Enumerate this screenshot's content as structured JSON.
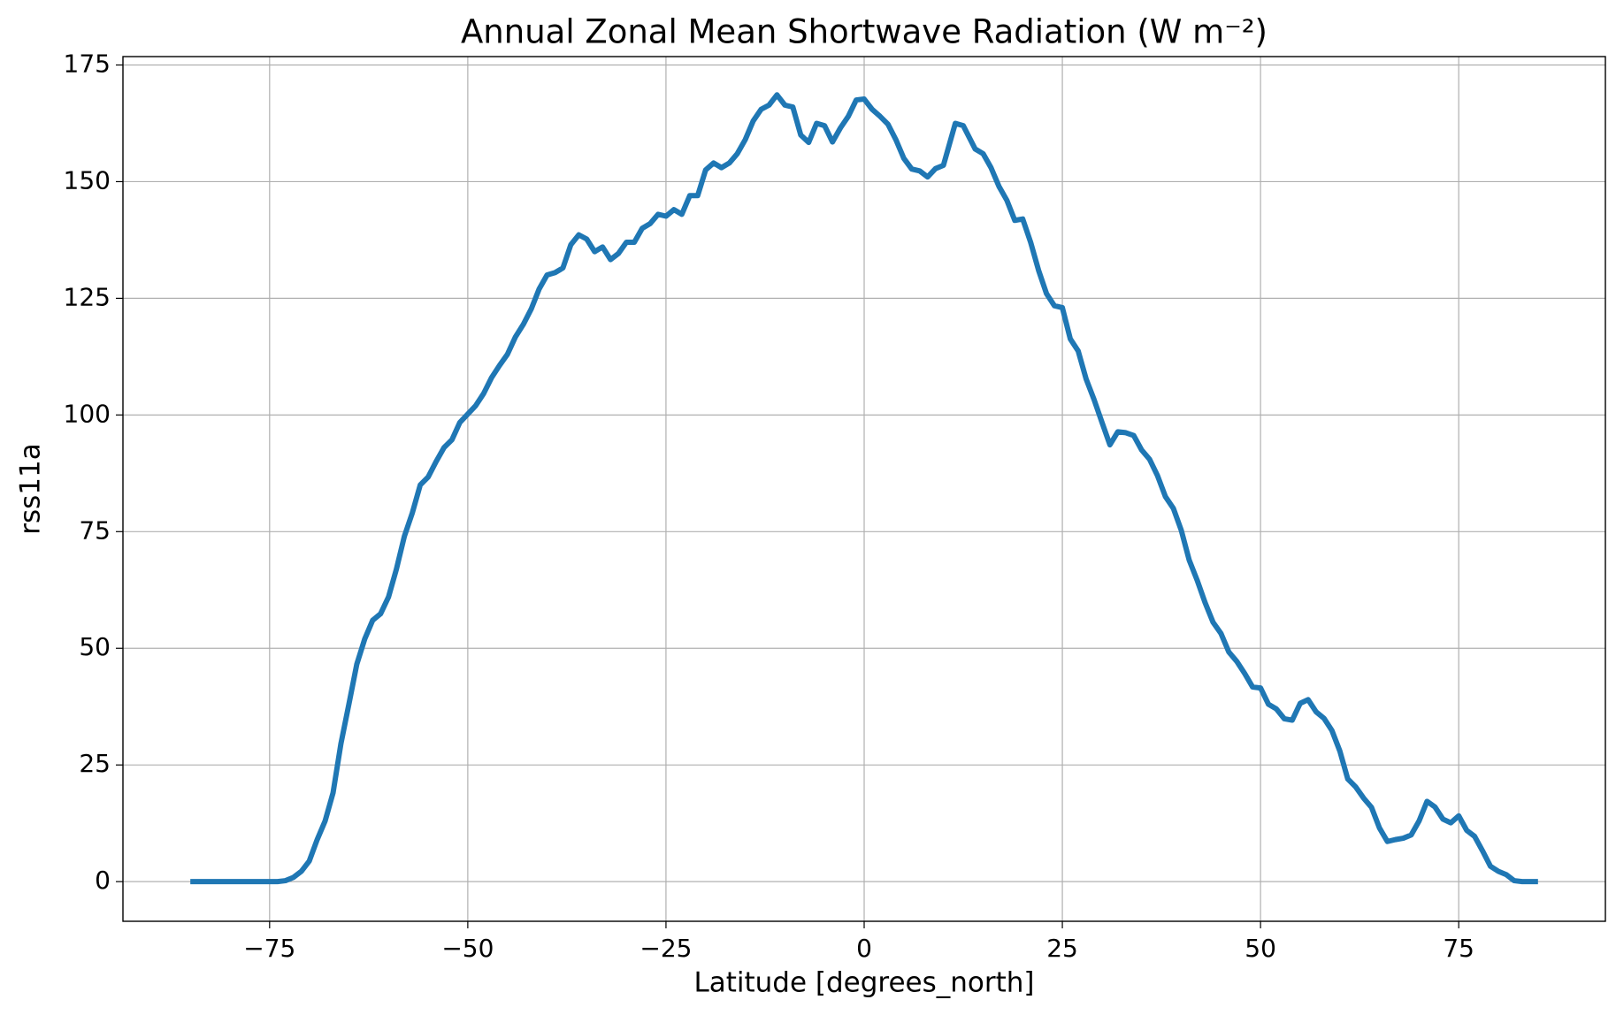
{
  "chart_data": {
    "type": "line",
    "title": "Annual Zonal Mean Shortwave Radiation (W m⁻²)",
    "x_label": "Latitude [degrees_north]",
    "y_label": "rss11a",
    "x": [
      -85,
      -84,
      -83,
      -82,
      -81,
      -80,
      -79,
      -78,
      -77,
      -76,
      -75,
      -74,
      -73,
      -72,
      -71,
      -70,
      -69,
      -68,
      -67,
      -66,
      -65,
      -64,
      -63,
      -62,
      -61,
      -60,
      -59,
      -58,
      -57,
      -56,
      -55,
      -54,
      -53,
      -52,
      -51,
      -50,
      -49,
      -48,
      -47,
      -46,
      -45,
      -44,
      -43,
      -42,
      -41,
      -40,
      -39,
      -38,
      -37,
      -36,
      -35,
      -34,
      -33,
      -32,
      -31,
      -30,
      -29,
      -28,
      -27,
      -26,
      -25,
      -24,
      -23,
      -22,
      -21,
      -20,
      -19,
      -18,
      -17,
      -16,
      -15,
      -14,
      -13,
      -12,
      -11,
      -10,
      -9,
      -8,
      -7,
      -6,
      -5,
      -4,
      -3,
      -2,
      -1,
      0,
      1,
      2,
      3,
      4,
      5,
      6,
      7,
      8,
      9,
      10,
      11.5,
      12.5,
      14,
      15,
      16,
      17,
      18,
      19,
      20,
      21,
      22,
      23,
      24,
      25,
      26,
      27,
      28,
      29,
      30,
      31,
      32,
      33,
      34,
      35,
      36,
      37,
      38,
      39,
      40,
      41,
      42,
      43,
      44,
      45,
      46,
      47,
      48,
      49,
      50,
      51,
      52,
      53,
      54,
      55,
      56,
      57,
      58,
      59,
      60,
      61,
      62,
      63,
      64,
      65,
      66,
      67,
      68,
      69,
      70,
      71,
      72,
      73,
      74,
      75,
      76,
      77,
      78,
      79,
      80,
      81,
      82,
      83,
      84,
      85
    ],
    "series": [
      {
        "name": "rss11a",
        "color": "#1f77b4",
        "values": [
          0,
          0,
          0,
          0,
          0,
          0,
          0,
          0,
          0,
          0,
          0,
          0,
          0.2,
          0.9,
          2.2,
          4.4,
          9,
          13,
          19,
          29.6,
          38,
          46.6,
          52,
          56,
          57.4,
          61,
          67,
          74,
          79,
          85,
          86.7,
          90,
          93,
          94.7,
          98.4,
          100.2,
          102,
          104.6,
          108,
          110.6,
          113,
          116.7,
          119.4,
          122.7,
          127,
          130,
          130.5,
          131.5,
          136.5,
          138.6,
          137.7,
          135,
          136,
          133.3,
          134.6,
          137,
          137,
          140,
          141,
          143,
          142.6,
          144,
          143,
          147,
          147,
          152.5,
          154,
          153,
          154,
          156,
          159,
          163,
          165.5,
          166.4,
          168.6,
          166.4,
          166,
          160,
          158.4,
          162.5,
          162,
          158.5,
          161.5,
          164,
          167.5,
          167.7,
          165.5,
          164,
          162.3,
          159,
          155,
          152.7,
          152.3,
          151,
          152.8,
          153.5,
          162.5,
          162,
          157,
          156,
          153,
          149,
          146,
          141.7,
          142,
          137,
          131,
          126,
          123.4,
          123,
          116.3,
          113.7,
          107.7,
          103.3,
          98.4,
          93.6,
          96.4,
          96.2,
          95.6,
          92.5,
          90.5,
          87,
          82.5,
          80,
          75.3,
          68.9,
          64.6,
          59.8,
          55.6,
          53.2,
          49.2,
          47.2,
          44.6,
          41.7,
          41.5,
          38,
          37,
          34.9,
          34.6,
          38.2,
          39,
          36.4,
          35,
          32.4,
          28,
          22,
          20.3,
          17.9,
          15.9,
          11.5,
          8.6,
          9,
          9.3,
          10,
          13,
          17.2,
          16,
          13.4,
          12.6,
          14.1,
          11,
          9.7,
          6.6,
          3.3,
          2.2,
          1.5,
          0.2,
          0,
          0,
          0
        ]
      }
    ],
    "xlim": [
      -93.5,
      93.5
    ],
    "ylim": [
      -8.5,
      176.8
    ],
    "xticks": [
      {
        "value": -75,
        "label": "−75"
      },
      {
        "value": -50,
        "label": "−50"
      },
      {
        "value": -25,
        "label": "−25"
      },
      0,
      25,
      50,
      75
    ],
    "yticks": [
      0,
      25,
      50,
      75,
      100,
      125,
      150,
      175
    ],
    "grid": true
  }
}
